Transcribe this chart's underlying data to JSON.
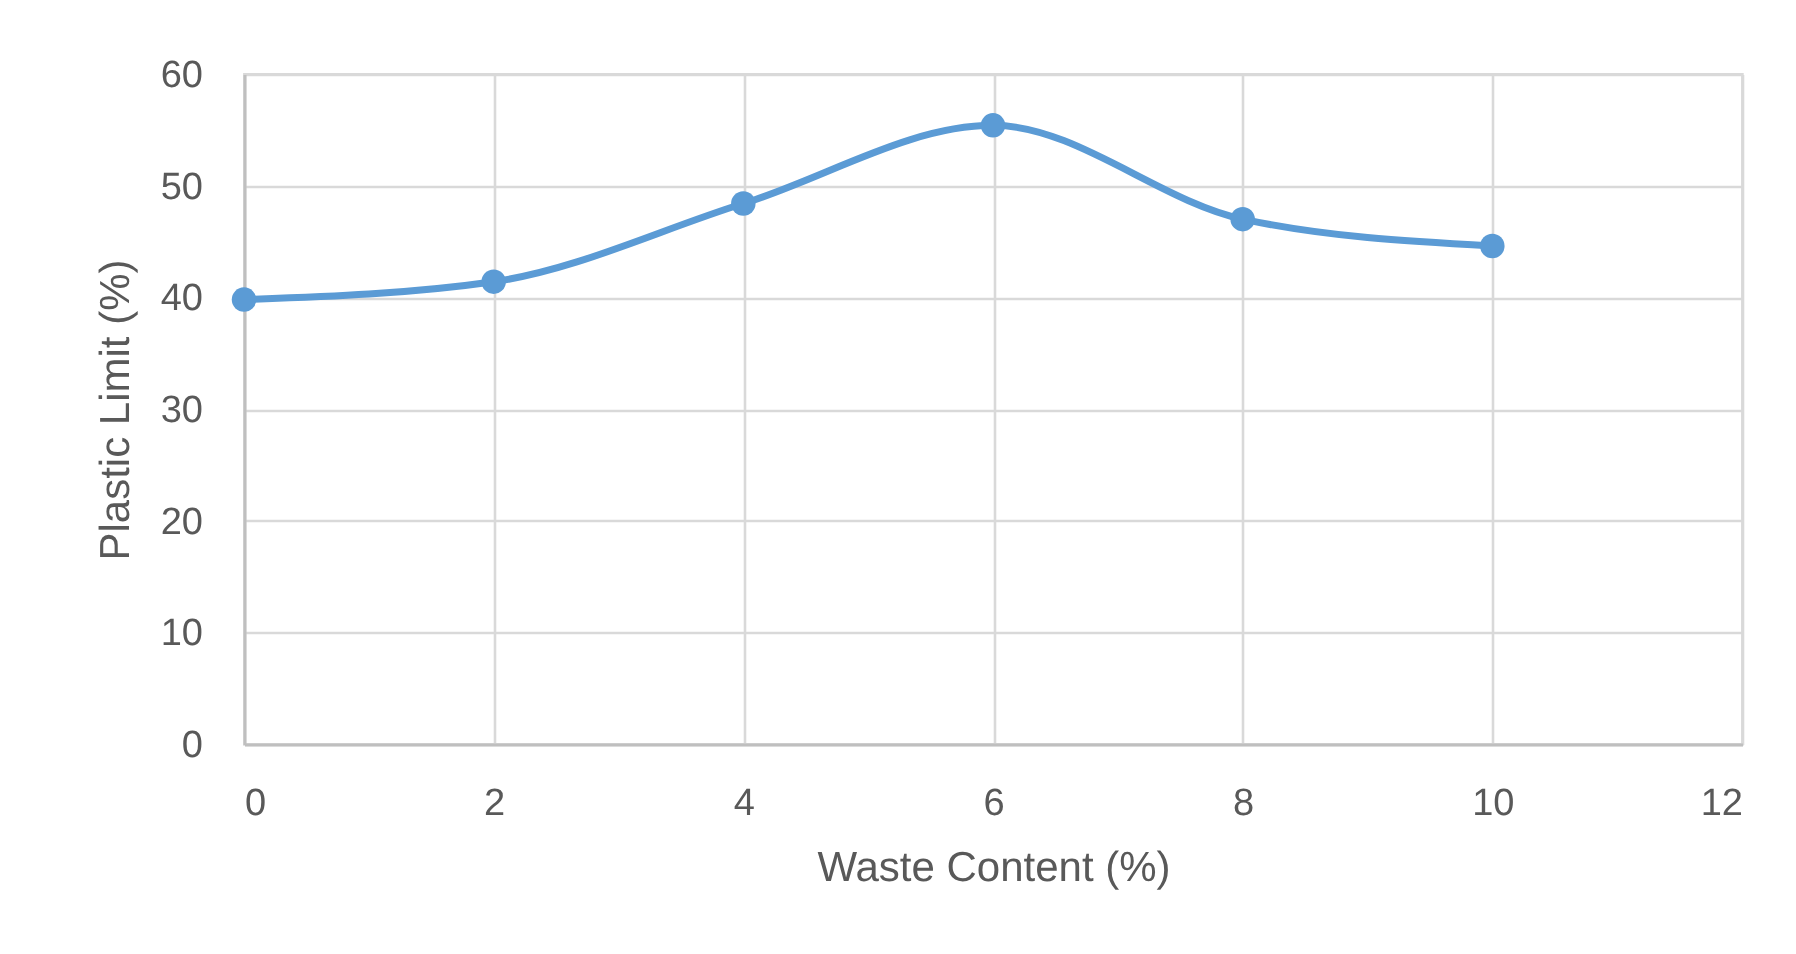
{
  "chart_data": {
    "type": "line",
    "xlabel": "Waste Content (%)",
    "ylabel": "Plastic Limit (%)",
    "x": [
      0,
      2,
      4,
      6,
      8,
      10
    ],
    "series": [
      {
        "color": "#5b9bd5",
        "values": [
          39.8,
          41.4,
          48.4,
          55.4,
          47.0,
          44.6
        ]
      }
    ],
    "xlim": [
      0,
      12
    ],
    "xticks": [
      0,
      2,
      4,
      6,
      8,
      10,
      12
    ],
    "ylim": [
      0,
      60
    ],
    "yticks": [
      0,
      10,
      20,
      30,
      40,
      50,
      60
    ],
    "grid": true,
    "marker": "circle",
    "line_style": "solid"
  }
}
